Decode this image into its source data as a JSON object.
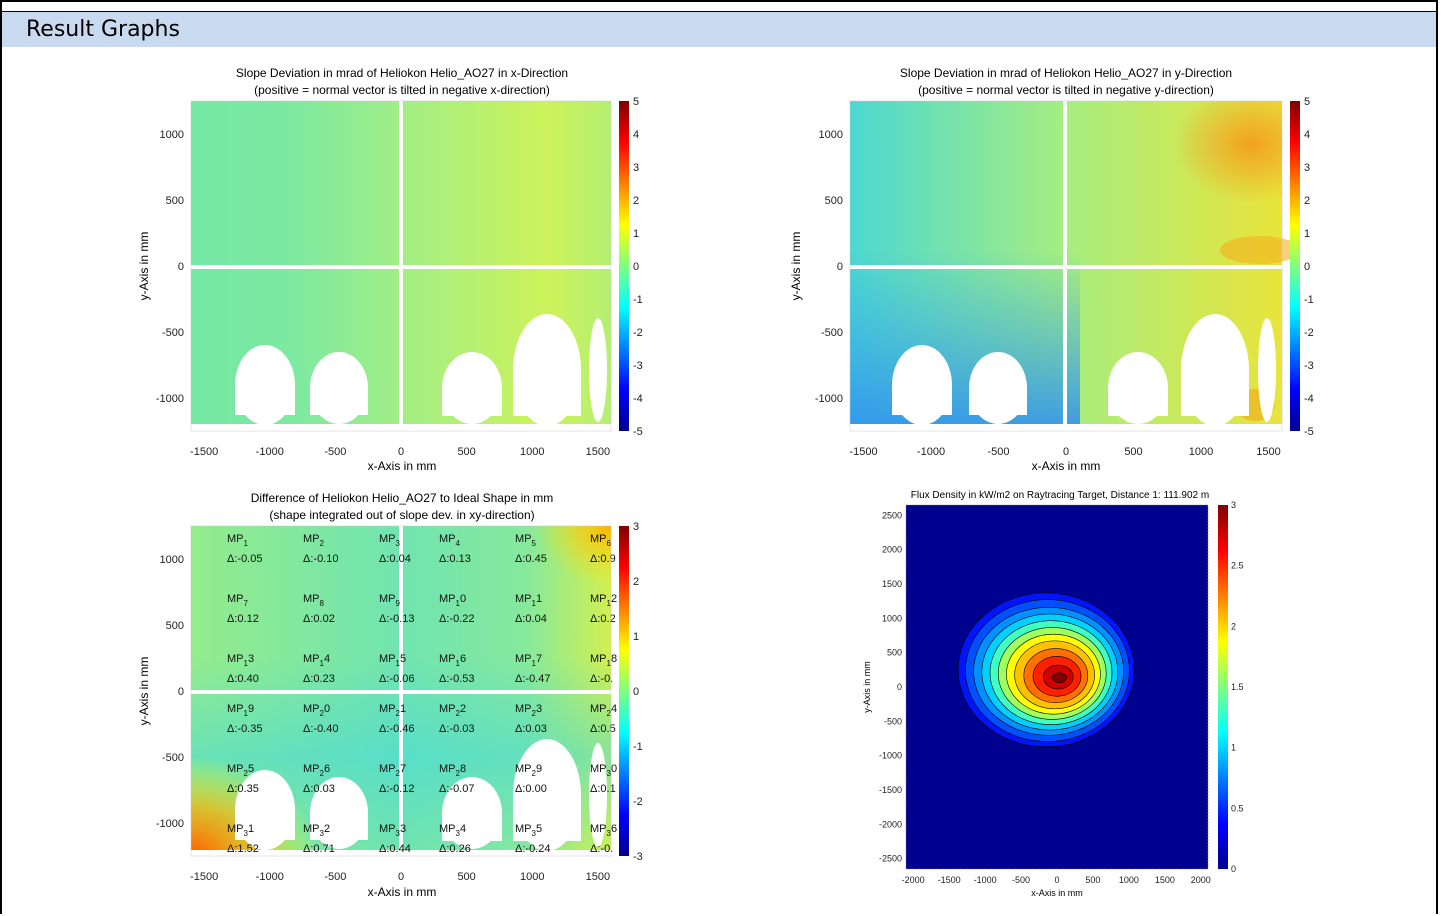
{
  "section": {
    "title": "Result Graphs"
  },
  "charts": {
    "xdir": {
      "title1": "Slope Deviation in mrad of Heliokon Helio_AO27 in x-Direction",
      "title2": "(positive = normal vector is tilted in negative x-direction)",
      "xlabel": "x-Axis in mm",
      "ylabel": "y-Axis in mm",
      "xticks": [
        "-1500",
        "-1000",
        "-500",
        "0",
        "500",
        "1000",
        "1500"
      ],
      "yticks": [
        "1000",
        "500",
        "0",
        "-500",
        "-1000"
      ],
      "cticks": [
        "5",
        "4",
        "3",
        "2",
        "1",
        "0",
        "-1",
        "-2",
        "-3",
        "-4",
        "-5"
      ]
    },
    "ydir": {
      "title1": "Slope Deviation in mrad of Heliokon Helio_AO27 in y-Direction",
      "title2": "(positive = normal vector is tilted in negative y-direction)",
      "xlabel": "x-Axis in mm",
      "ylabel": "y-Axis in mm",
      "xticks": [
        "-1500",
        "-1000",
        "-500",
        "0",
        "500",
        "1000",
        "1500"
      ],
      "yticks": [
        "1000",
        "500",
        "0",
        "-500",
        "-1000"
      ],
      "cticks": [
        "5",
        "4",
        "3",
        "2",
        "1",
        "0",
        "-1",
        "-2",
        "-3",
        "-4",
        "-5"
      ]
    },
    "shape": {
      "title1": "Difference of Heliokon Helio_AO27 to Ideal Shape in mm",
      "title2": "(shape integrated out of slope dev. in xy-direction)",
      "xlabel": "x-Axis in mm",
      "ylabel": "y-Axis in mm",
      "xticks": [
        "-1500",
        "-1000",
        "-500",
        "0",
        "500",
        "1000",
        "1500"
      ],
      "yticks": [
        "1000",
        "500",
        "0",
        "-500",
        "-1000"
      ],
      "cticks": [
        "3",
        "2",
        "1",
        "0",
        "-1",
        "-2",
        "-3"
      ]
    },
    "flux": {
      "title1": "Flux Density in kW/m2 on Raytracing Target, Distance 1: 111.902 m",
      "xlabel": "x-Axis in mm",
      "ylabel": "y-Axis in mm",
      "xticks": [
        "-2000",
        "-1500",
        "-1000",
        "-500",
        "0",
        "500",
        "1000",
        "1500",
        "2000"
      ],
      "yticks": [
        "2500",
        "2000",
        "1500",
        "1000",
        "500",
        "0",
        "-500",
        "-1000",
        "-1500",
        "-2000",
        "-2500"
      ],
      "cticks": [
        "3",
        "2.5",
        "2",
        "1.5",
        "1",
        "0.5",
        "0"
      ]
    }
  },
  "chart_data": [
    {
      "type": "heatmap",
      "title": "Slope Deviation in mrad of Heliokon Helio_AO27 in x-Direction",
      "subtitle": "(positive = normal vector is tilted in negative x-direction)",
      "xlabel": "x-Axis in mm",
      "ylabel": "y-Axis in mm",
      "xlim": [
        -1600,
        1600
      ],
      "ylim": [
        -1250,
        1250
      ],
      "clim": [
        -5,
        5
      ],
      "colormap": "jet"
    },
    {
      "type": "heatmap",
      "title": "Slope Deviation in mrad of Heliokon Helio_AO27 in y-Direction",
      "subtitle": "(positive = normal vector is tilted in negative y-direction)",
      "xlabel": "x-Axis in mm",
      "ylabel": "y-Axis in mm",
      "xlim": [
        -1600,
        1600
      ],
      "ylim": [
        -1250,
        1250
      ],
      "clim": [
        -5,
        5
      ],
      "colormap": "jet"
    },
    {
      "type": "heatmap",
      "title": "Difference of Heliokon Helio_AO27 to Ideal Shape in mm",
      "subtitle": "(shape integrated out of slope dev. in xy-direction)",
      "xlabel": "x-Axis in mm",
      "ylabel": "y-Axis in mm",
      "xlim": [
        -1600,
        1600
      ],
      "ylim": [
        -1250,
        1250
      ],
      "clim": [
        -3,
        3
      ],
      "colormap": "jet",
      "measurement_points": [
        [
          "MP",
          "1",
          "",
          "Δ:-0.05"
        ],
        [
          "MP",
          "2",
          "",
          "Δ:-0.10"
        ],
        [
          "MP",
          "3",
          "",
          "Δ:0.04"
        ],
        [
          "MP",
          "4",
          "",
          "Δ:0.13"
        ],
        [
          "MP",
          "5",
          "",
          "Δ:0.45"
        ],
        [
          "MP",
          "6",
          "",
          "Δ:0.9"
        ],
        [
          "MP",
          "7",
          "",
          "Δ:0.12"
        ],
        [
          "MP",
          "8",
          "",
          "Δ:0.02"
        ],
        [
          "MP",
          "9",
          "",
          "Δ:-0.13"
        ],
        [
          "MP",
          "1",
          "0",
          "Δ:-0.22"
        ],
        [
          "MP",
          "1",
          "1",
          "Δ:0.04"
        ],
        [
          "MP",
          "1",
          "2",
          "Δ:0.2"
        ],
        [
          "MP",
          "1",
          "3",
          "Δ:0.40"
        ],
        [
          "MP",
          "1",
          "4",
          "Δ:0.23"
        ],
        [
          "MP",
          "1",
          "5",
          "Δ:-0.06"
        ],
        [
          "MP",
          "1",
          "6",
          "Δ:-0.53"
        ],
        [
          "MP",
          "1",
          "7",
          "Δ:-0.47"
        ],
        [
          "MP",
          "1",
          "8",
          "Δ:-0."
        ],
        [
          "MP",
          "1",
          "9",
          "Δ:-0.35"
        ],
        [
          "MP",
          "2",
          "0",
          "Δ:-0.40"
        ],
        [
          "MP",
          "2",
          "1",
          "Δ:-0.46"
        ],
        [
          "MP",
          "2",
          "2",
          "Δ:-0.03"
        ],
        [
          "MP",
          "2",
          "3",
          "Δ:0.03"
        ],
        [
          "MP",
          "2",
          "4",
          "Δ:0.5"
        ],
        [
          "MP",
          "2",
          "5",
          "Δ:0.35"
        ],
        [
          "MP",
          "2",
          "6",
          "Δ:0.03"
        ],
        [
          "MP",
          "2",
          "7",
          "Δ:-0.12"
        ],
        [
          "MP",
          "2",
          "8",
          "Δ:-0.07"
        ],
        [
          "MP",
          "2",
          "9",
          "Δ:0.00"
        ],
        [
          "MP",
          "3",
          "0",
          "Δ:0.1"
        ],
        [
          "MP",
          "3",
          "1",
          "Δ:1.52"
        ],
        [
          "MP",
          "3",
          "2",
          "Δ:0.71"
        ],
        [
          "MP",
          "3",
          "3",
          "Δ:0.44"
        ],
        [
          "MP",
          "3",
          "4",
          "Δ:0.26"
        ],
        [
          "MP",
          "3",
          "5",
          "Δ:-0.24"
        ],
        [
          "MP",
          "3",
          "6",
          "Δ:-0."
        ]
      ]
    },
    {
      "type": "heatmap",
      "title": "Flux Density in kW/m2 on Raytracing Target, Distance 1: 111.902 m",
      "xlabel": "x-Axis in mm",
      "ylabel": "y-Axis in mm",
      "xlim": [
        -2100,
        2100
      ],
      "ylim": [
        -2650,
        2650
      ],
      "clim": [
        0,
        3
      ],
      "colormap": "jet",
      "peak_center": [
        -150,
        250
      ]
    }
  ],
  "colors": {
    "header_bg": "#c9daf0",
    "border": "#000000"
  }
}
